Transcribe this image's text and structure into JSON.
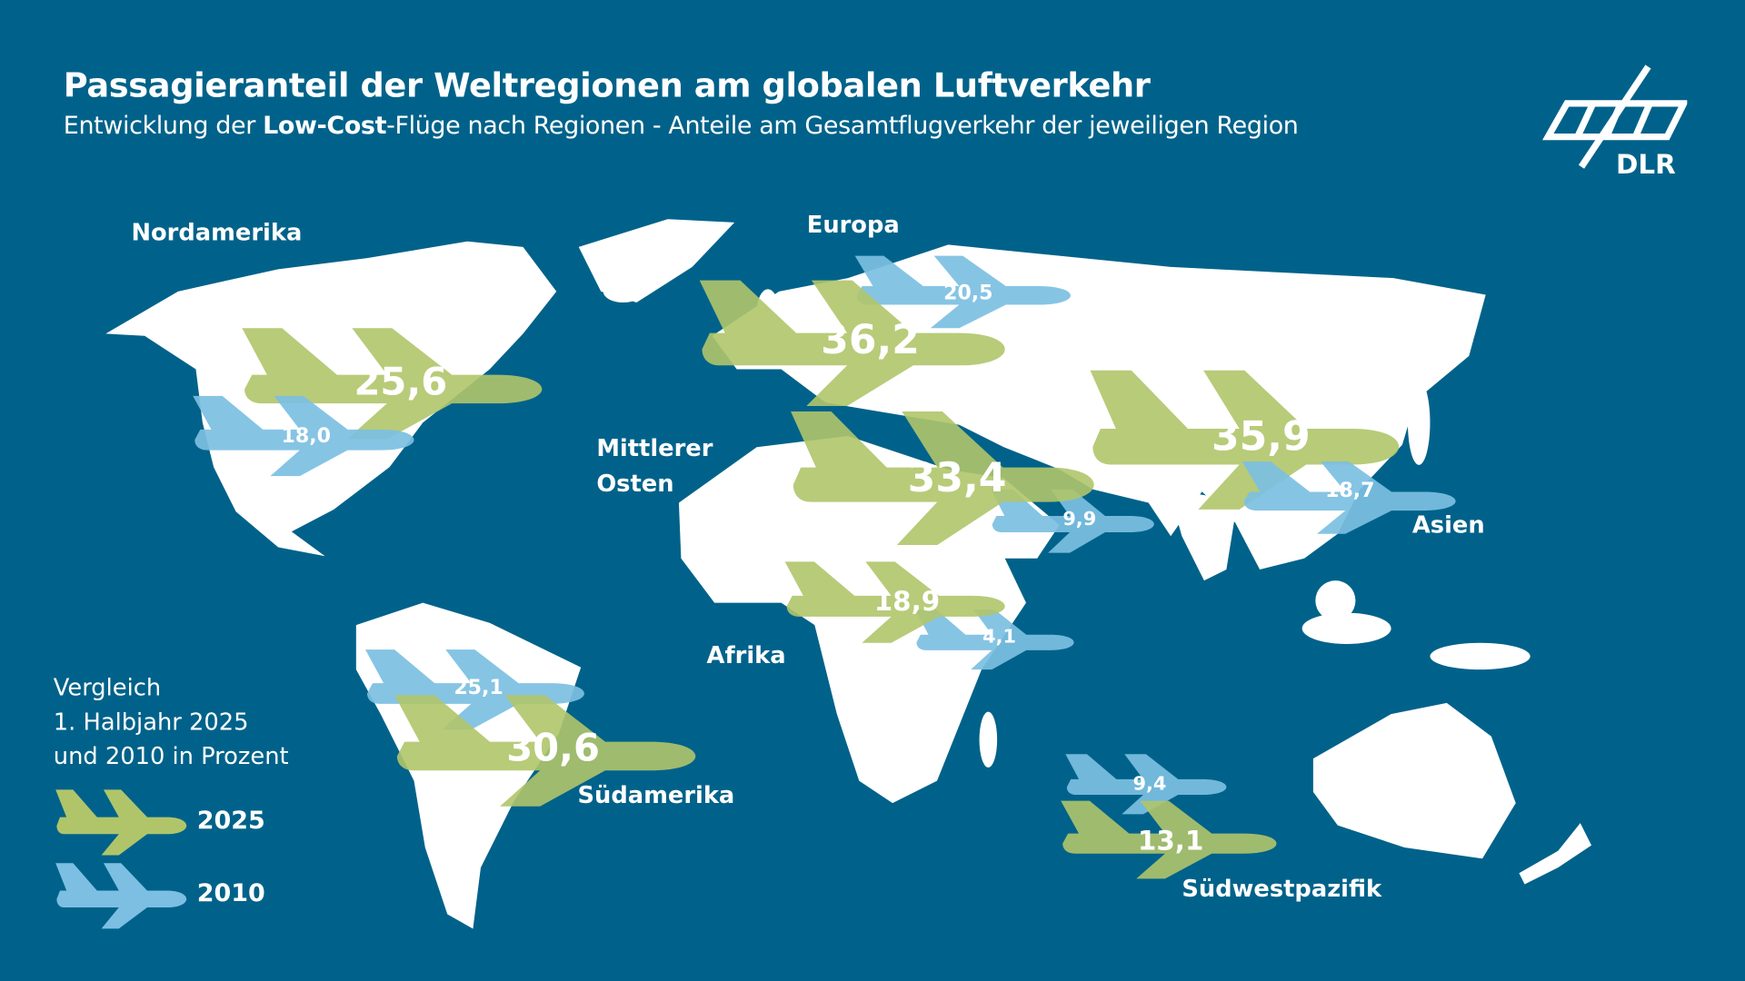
{
  "header": {
    "title": "Passagieranteil der Weltregionen am globalen Luftverkehr",
    "subtitle_pre": "Entwicklung der ",
    "subtitle_bold": "Low-Cost",
    "subtitle_post": "-Flüge nach Regionen - Anteile am Gesamtflugverkehr der jeweiligen Region",
    "logo_text": "DLR"
  },
  "colors": {
    "background": "#00628a",
    "land": "#ffffff",
    "series_2025": "#b0c56a",
    "series_2010": "#7cbfe2"
  },
  "legend": {
    "line1": "Vergleich",
    "line2": "1. Halbjahr 2025",
    "line3": "und 2010 in Prozent",
    "items": [
      {
        "label": "2025",
        "icon": "airplane-icon-green"
      },
      {
        "label": "2010",
        "icon": "airplane-icon-blue"
      }
    ]
  },
  "chart_data": {
    "type": "map-pictogram",
    "unit": "%",
    "series": [
      {
        "name": "2025"
      },
      {
        "name": "2010"
      }
    ],
    "regions": [
      {
        "name": "Nordamerika",
        "v2025": "25,6",
        "v2010": "18,0"
      },
      {
        "name": "Europa",
        "v2025": "36,2",
        "v2010": "20,5"
      },
      {
        "name": "Mittlerer Osten",
        "v2025": "33,4",
        "v2010": "9,9"
      },
      {
        "name": "Asien",
        "v2025": "35,9",
        "v2010": "18,7"
      },
      {
        "name": "Afrika",
        "v2025": "18,9",
        "v2010": "4,1"
      },
      {
        "name": "Südamerika",
        "v2025": "30,6",
        "v2010": "25,1"
      },
      {
        "name": "Südwestpazifik",
        "v2025": "13,1",
        "v2010": "9,4"
      }
    ]
  }
}
